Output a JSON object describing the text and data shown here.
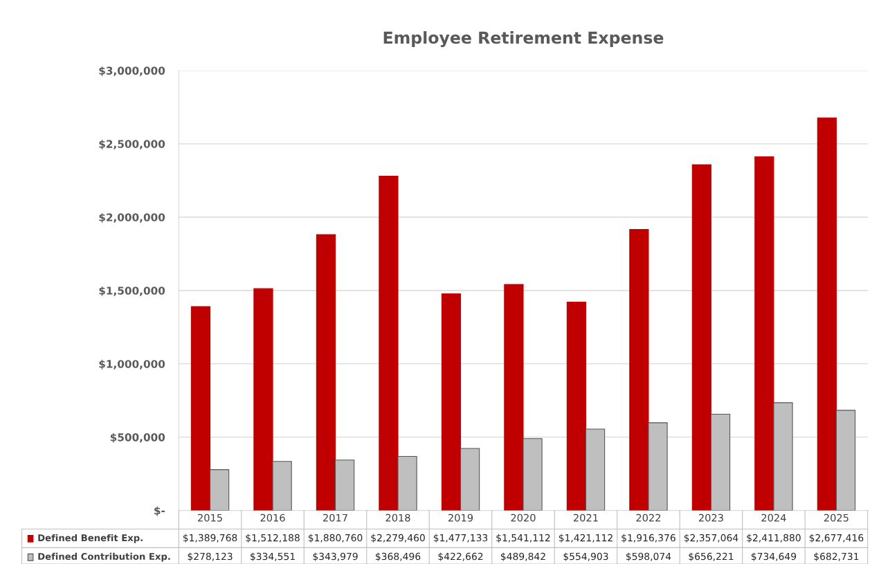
{
  "chart_data": {
    "type": "bar",
    "title": "Employee Retirement Expense",
    "categories": [
      "2015",
      "2016",
      "2017",
      "2018",
      "2019",
      "2020",
      "2021",
      "2022",
      "2023",
      "2024",
      "2025"
    ],
    "series": [
      {
        "name": "Defined Benefit Exp.",
        "color": "#c00000",
        "values": [
          1389768,
          1512188,
          1880760,
          2279460,
          1477133,
          1541112,
          1421112,
          1916376,
          2357064,
          2411880,
          2677416
        ],
        "value_labels": [
          "$1,389,768",
          "$1,512,188",
          "$1,880,760",
          "$2,279,460",
          "$1,477,133",
          "$1,541,112",
          "$1,421,112",
          "$1,916,376",
          "$2,357,064",
          "$2,411,880",
          "$2,677,416"
        ]
      },
      {
        "name": "Defined Contribution Exp.",
        "color": "#bfbfbf",
        "values": [
          278123,
          334551,
          343979,
          368496,
          422662,
          489842,
          554903,
          598074,
          656221,
          734649,
          682731
        ],
        "value_labels": [
          "$278,123",
          "$334,551",
          "$343,979",
          "$368,496",
          "$422,662",
          "$489,842",
          "$554,903",
          "$598,074",
          "$656,221",
          "$734,649",
          "$682,731"
        ]
      }
    ],
    "ylim": [
      0,
      3000000
    ],
    "yticks": [
      {
        "value": 0,
        "label": "$-"
      },
      {
        "value": 500000,
        "label": "$500,000"
      },
      {
        "value": 1000000,
        "label": "$1,000,000"
      },
      {
        "value": 1500000,
        "label": "$1,500,000"
      },
      {
        "value": 2000000,
        "label": "$2,000,000"
      },
      {
        "value": 2500000,
        "label": "$2,500,000"
      },
      {
        "value": 3000000,
        "label": "$3,000,000"
      }
    ],
    "grid": "y",
    "legend": "bottom"
  }
}
